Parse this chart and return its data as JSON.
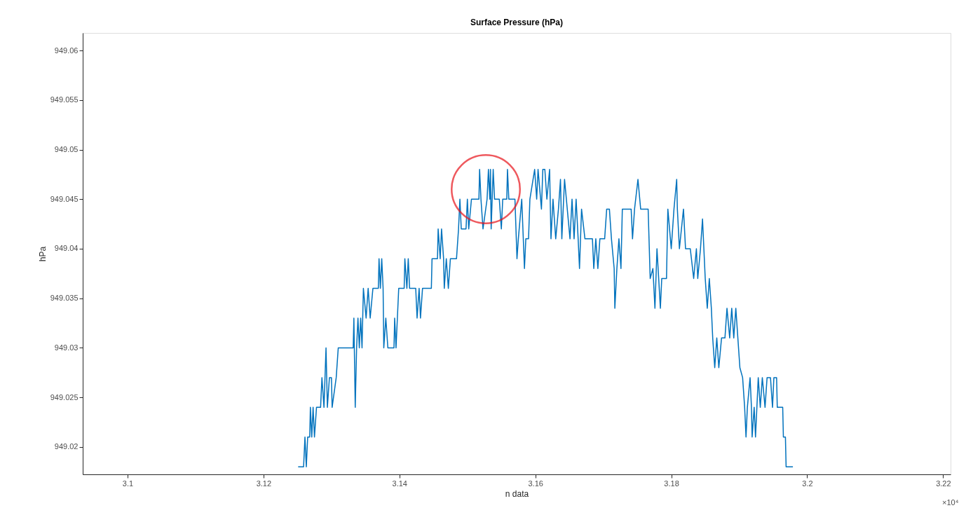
{
  "chart_data": {
    "type": "line",
    "title": "Surface Pressure (hPa)",
    "xlabel": "n data",
    "ylabel": "hPa",
    "annotations": [
      "×10⁴"
    ],
    "xlim": [
      3.0934,
      3.2211
    ],
    "ylim": [
      949.01724,
      949.06177
    ],
    "xticks": [
      3.1,
      3.12,
      3.14,
      3.16,
      3.18,
      3.2,
      3.22
    ],
    "yticks": [
      949.02,
      949.025,
      949.03,
      949.035,
      949.04,
      949.045,
      949.05,
      949.055,
      949.06
    ],
    "grid": false,
    "series": [
      {
        "color": "#0072bd",
        "x": [
          3.1251,
          3.1259,
          3.1261,
          3.1263,
          3.1265,
          3.1268,
          3.1269,
          3.1271,
          3.1273,
          3.1275,
          3.1278,
          3.1284,
          3.1286,
          3.1289,
          3.1292,
          3.1294,
          3.1297,
          3.13,
          3.1301,
          3.1307,
          3.131,
          3.1332,
          3.1333,
          3.1335,
          3.1337,
          3.1339,
          3.1341,
          3.1343,
          3.1345,
          3.1347,
          3.1351,
          3.1354,
          3.1357,
          3.1361,
          3.1369,
          3.137,
          3.1372,
          3.1374,
          3.1376,
          3.1377,
          3.138,
          3.1383,
          3.1392,
          3.1393,
          3.1395,
          3.1397,
          3.1399,
          3.1407,
          3.1408,
          3.1411,
          3.1413,
          3.1415,
          3.1424,
          3.1426,
          3.1429,
          3.1431,
          3.1434,
          3.1447,
          3.1448,
          3.1456,
          3.1457,
          3.146,
          3.1462,
          3.1465,
          3.1466,
          3.1469,
          3.1472,
          3.1475,
          3.1484,
          3.1487,
          3.1489,
          3.1491,
          3.1498,
          3.15,
          3.1502,
          3.1506,
          3.1517,
          3.1518,
          3.152,
          3.1523,
          3.1529,
          3.1531,
          3.1533,
          3.1534,
          3.1535,
          3.1538,
          3.154,
          3.1547,
          3.155,
          3.1552,
          3.1558,
          3.1559,
          3.1561,
          3.157,
          3.1573,
          3.1575,
          3.158,
          3.1584,
          3.1586,
          3.159,
          3.1592,
          3.1599,
          3.1602,
          3.1604,
          3.1609,
          3.1611,
          3.1614,
          3.1617,
          3.1621,
          3.1623,
          3.1626,
          3.163,
          3.1634,
          3.1637,
          3.1639,
          3.1643,
          3.1647,
          3.1651,
          3.1654,
          3.1657,
          3.166,
          3.1663,
          3.1665,
          3.1668,
          3.1673,
          3.1684,
          3.1686,
          3.1689,
          3.1692,
          3.1695,
          3.1702,
          3.1705,
          3.1709,
          3.1712,
          3.1716,
          3.1717,
          3.172,
          3.1723,
          3.1726,
          3.1728,
          3.1741,
          3.1743,
          3.1746,
          3.1751,
          3.1755,
          3.1766,
          3.1769,
          3.1773,
          3.1776,
          3.1779,
          3.1784,
          3.1786,
          3.1793,
          3.1795,
          3.18,
          3.1804,
          3.1808,
          3.1809,
          3.1812,
          3.1818,
          3.1821,
          3.1828,
          3.1833,
          3.1837,
          3.1839,
          3.1843,
          3.1846,
          3.185,
          3.1853,
          3.1856,
          3.1859,
          3.1861,
          3.1864,
          3.1867,
          3.187,
          3.1874,
          3.1879,
          3.1882,
          3.1886,
          3.1889,
          3.1892,
          3.1895,
          3.1898,
          3.1901,
          3.1905,
          3.1908,
          3.191,
          3.1912,
          3.1916,
          3.1918,
          3.1919,
          3.1922,
          3.1924,
          3.1926,
          3.1928,
          3.1931,
          3.1934,
          3.1938,
          3.1941,
          3.1946,
          3.1949,
          3.1951,
          3.1955,
          3.1956,
          3.1964,
          3.1965,
          3.1968,
          3.1969,
          3.1971,
          3.1974,
          3.1976,
          3.1979
        ],
        "values": [
          949.018,
          949.018,
          949.021,
          949.018,
          949.021,
          949.021,
          949.024,
          949.021,
          949.024,
          949.021,
          949.024,
          949.024,
          949.027,
          949.024,
          949.03,
          949.024,
          949.027,
          949.027,
          949.024,
          949.027,
          949.03,
          949.03,
          949.033,
          949.024,
          949.03,
          949.033,
          949.03,
          949.033,
          949.03,
          949.036,
          949.033,
          949.036,
          949.033,
          949.036,
          949.036,
          949.039,
          949.036,
          949.039,
          949.036,
          949.03,
          949.033,
          949.03,
          949.03,
          949.033,
          949.03,
          949.033,
          949.036,
          949.036,
          949.039,
          949.036,
          949.039,
          949.036,
          949.036,
          949.033,
          949.036,
          949.033,
          949.036,
          949.036,
          949.039,
          949.039,
          949.042,
          949.039,
          949.042,
          949.039,
          949.036,
          949.039,
          949.036,
          949.039,
          949.039,
          949.042,
          949.045,
          949.042,
          949.042,
          949.045,
          949.042,
          949.045,
          949.045,
          949.048,
          949.045,
          949.042,
          949.045,
          949.048,
          949.045,
          949.048,
          949.042,
          949.048,
          949.045,
          949.045,
          949.042,
          949.045,
          949.045,
          949.048,
          949.045,
          949.045,
          949.039,
          949.041,
          949.045,
          949.038,
          949.041,
          949.041,
          949.045,
          949.048,
          949.045,
          949.048,
          949.044,
          949.048,
          949.048,
          949.045,
          949.048,
          949.041,
          949.045,
          949.041,
          949.044,
          949.047,
          949.041,
          949.047,
          949.044,
          949.041,
          949.045,
          949.041,
          949.045,
          949.041,
          949.038,
          949.044,
          949.041,
          949.041,
          949.038,
          949.041,
          949.038,
          949.041,
          949.041,
          949.044,
          949.044,
          949.041,
          949.038,
          949.034,
          949.038,
          949.041,
          949.038,
          949.044,
          949.044,
          949.041,
          949.044,
          949.047,
          949.044,
          949.044,
          949.037,
          949.038,
          949.034,
          949.04,
          949.034,
          949.037,
          949.037,
          949.044,
          949.04,
          949.044,
          949.047,
          949.044,
          949.04,
          949.044,
          949.04,
          949.04,
          949.037,
          949.04,
          949.037,
          949.04,
          949.043,
          949.037,
          949.034,
          949.037,
          949.034,
          949.031,
          949.028,
          949.031,
          949.028,
          949.031,
          949.031,
          949.034,
          949.031,
          949.034,
          949.031,
          949.034,
          949.031,
          949.028,
          949.027,
          949.024,
          949.021,
          949.024,
          949.027,
          949.024,
          949.021,
          949.024,
          949.021,
          949.024,
          949.027,
          949.024,
          949.027,
          949.024,
          949.027,
          949.027,
          949.024,
          949.027,
          949.027,
          949.024,
          949.024,
          949.021,
          949.021,
          949.018,
          949.018,
          949.018,
          949.018,
          949.018
        ]
      }
    ]
  }
}
